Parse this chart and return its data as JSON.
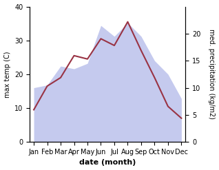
{
  "months": [
    "Jan",
    "Feb",
    "Mar",
    "Apr",
    "May",
    "Jun",
    "Jul",
    "Aug",
    "Sep",
    "Oct",
    "Nov",
    "Dec"
  ],
  "temp": [
    9.5,
    16.5,
    19.0,
    25.5,
    24.5,
    30.5,
    28.5,
    35.5,
    27.0,
    19.0,
    10.5,
    7.0
  ],
  "precip": [
    10.0,
    10.5,
    14.0,
    13.5,
    14.5,
    21.5,
    19.5,
    22.0,
    19.5,
    15.0,
    12.5,
    8.0
  ],
  "temp_color": "#993344",
  "precip_fill_color": "#c5caee",
  "ylim_left": [
    0,
    40
  ],
  "ylim_right": [
    0,
    25
  ],
  "yticks_left": [
    0,
    10,
    20,
    30,
    40
  ],
  "yticks_right": [
    0,
    5,
    10,
    15,
    20
  ],
  "xlabel": "date (month)",
  "ylabel_left": "max temp (C)",
  "ylabel_right": "med. precipitation (kg/m2)",
  "figsize": [
    3.18,
    2.47
  ],
  "dpi": 100
}
